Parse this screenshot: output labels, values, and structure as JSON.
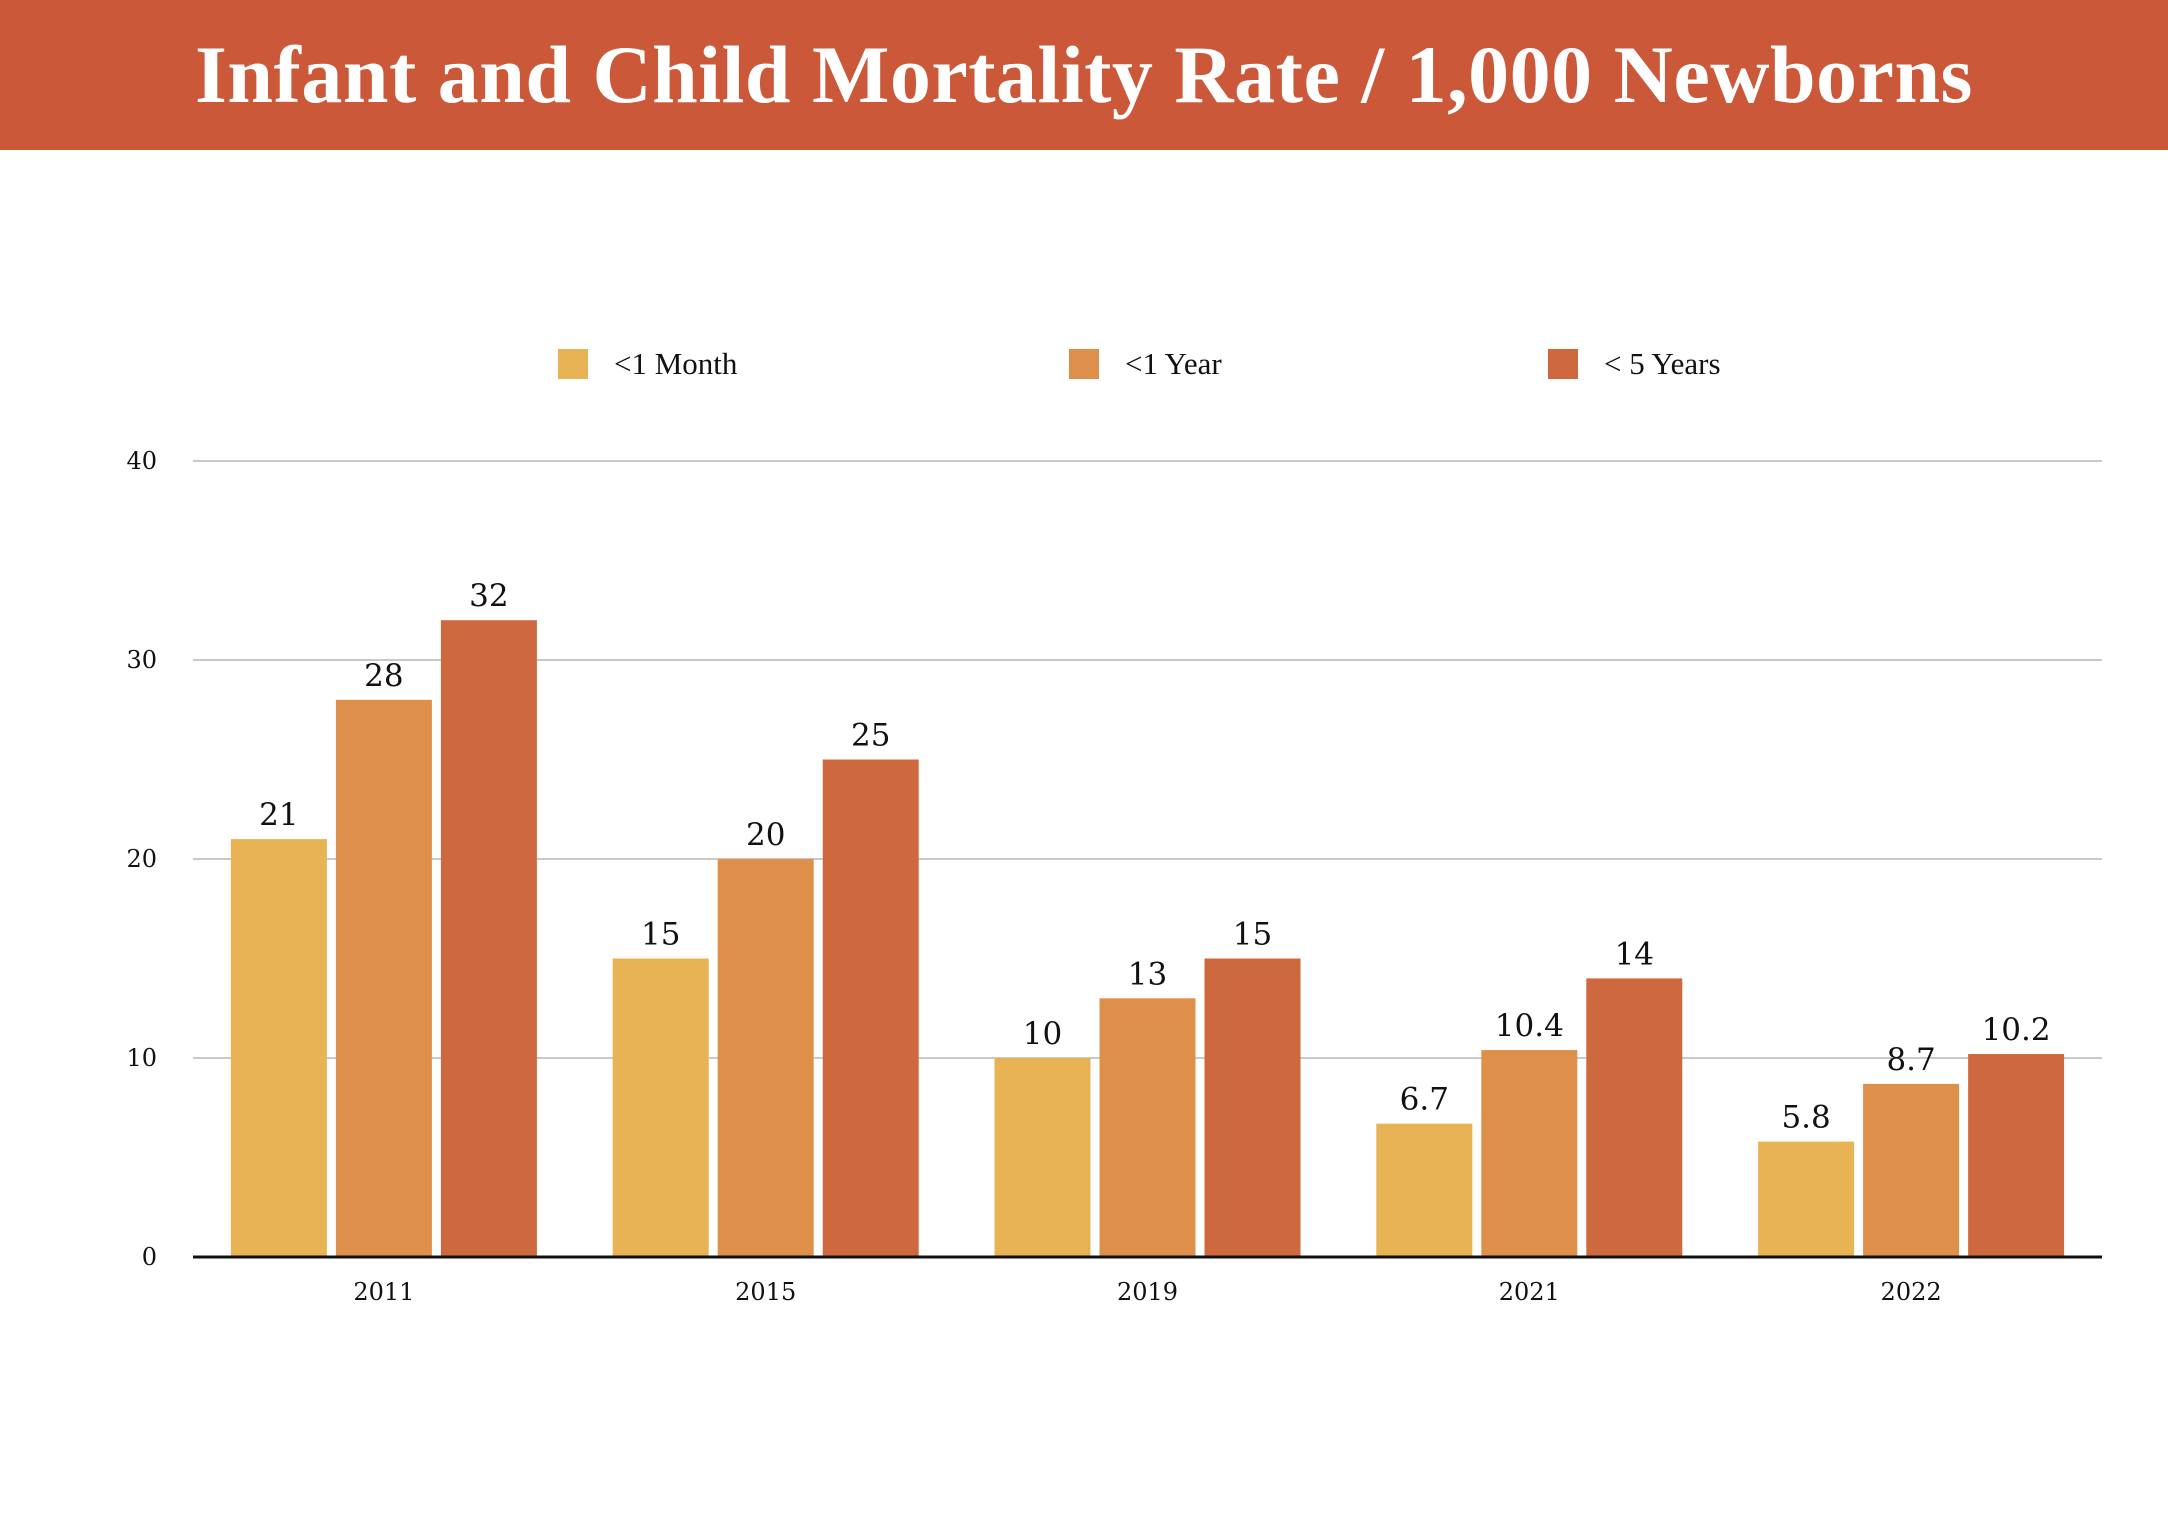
{
  "header": {
    "title": "Infant and Child Mortality Rate / 1,000 Newborns",
    "background": "#cb5839"
  },
  "chart_data": {
    "type": "bar",
    "title": "Infant and Child Mortality Rate / 1,000 Newborns",
    "xlabel": "",
    "ylabel": "",
    "categories": [
      "2011",
      "2015",
      "2019",
      "2021",
      "2022"
    ],
    "series": [
      {
        "name": "<1 Month",
        "color": "#e8b354",
        "values": [
          21,
          15,
          10,
          6.7,
          5.8
        ],
        "labels": [
          "21",
          "15",
          "10",
          "6.7",
          "5.8"
        ]
      },
      {
        "name": "<1 Year",
        "color": "#de904b",
        "values": [
          28,
          20,
          13,
          10.4,
          8.7
        ],
        "labels": [
          "28",
          "20",
          "13",
          "10.4",
          "8.7"
        ]
      },
      {
        "name": "< 5 Years",
        "color": "#ce693f",
        "values": [
          32,
          25,
          15,
          14,
          10.2
        ],
        "labels": [
          "32",
          "25",
          "15",
          "14",
          "10.2"
        ]
      }
    ],
    "ylim": [
      0,
      40
    ],
    "yticks": [
      0,
      10,
      20,
      30,
      40
    ],
    "ytick_labels": [
      "0",
      "10",
      "20",
      "30",
      "40"
    ],
    "grid": true,
    "legend_position": "top-center"
  }
}
